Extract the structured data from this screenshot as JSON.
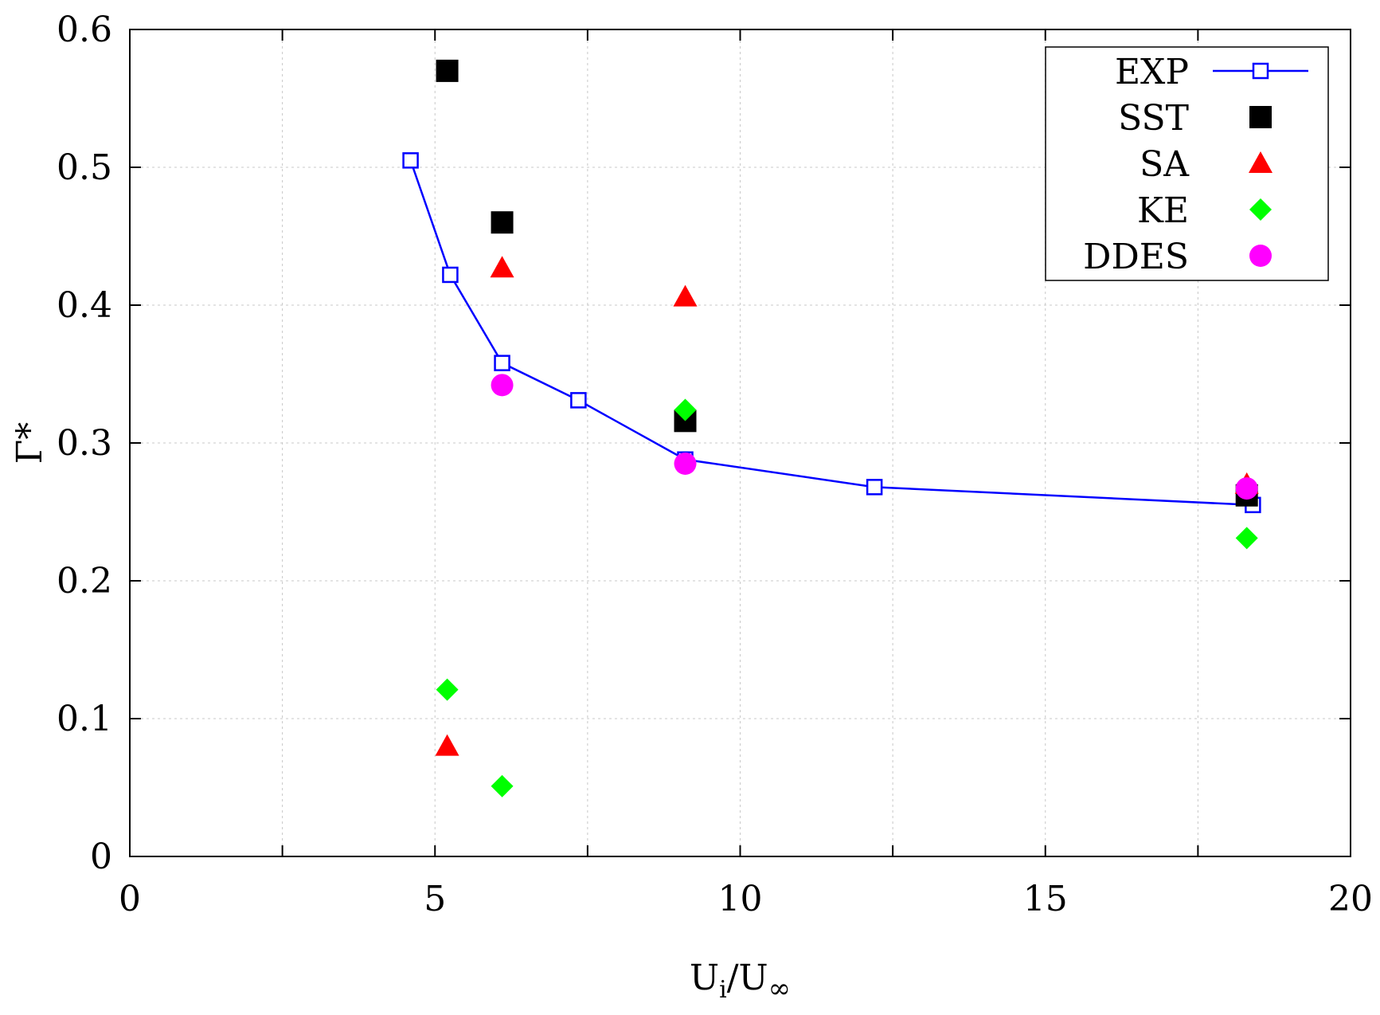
{
  "chart_data": {
    "type": "scatter",
    "title": "",
    "xlabel": "Ui/U∞",
    "xlabel_parts": {
      "base": "U",
      "sub": "i",
      "mid": "/U",
      "sub2": "∞"
    },
    "ylabel": "Γ*",
    "xlim": [
      0,
      20
    ],
    "ylim": [
      0,
      0.6
    ],
    "xticks": [
      0,
      5,
      10,
      15,
      20
    ],
    "yticks": [
      0,
      0.1,
      0.2,
      0.3,
      0.4,
      0.5,
      0.6
    ],
    "xtick_labels": [
      "0",
      "5",
      "10",
      "15",
      "20"
    ],
    "ytick_labels": [
      "0",
      "0.1",
      "0.2",
      "0.3",
      "0.4",
      "0.5",
      "0.6"
    ],
    "grid": true,
    "legend_position": "top-right",
    "series": [
      {
        "name": "EXP",
        "marker": "open-square",
        "line": true,
        "color": "#0000ff",
        "x": [
          4.6,
          5.25,
          6.1,
          7.35,
          9.1,
          12.2,
          18.4
        ],
        "y": [
          0.505,
          0.422,
          0.358,
          0.331,
          0.288,
          0.268,
          0.255
        ]
      },
      {
        "name": "SST",
        "marker": "filled-square",
        "line": false,
        "color": "#000000",
        "x": [
          5.2,
          6.1,
          9.1,
          18.3
        ],
        "y": [
          0.57,
          0.46,
          0.316,
          0.262
        ]
      },
      {
        "name": "SA",
        "marker": "triangle",
        "line": false,
        "color": "#ff0000",
        "x": [
          5.2,
          6.1,
          9.1,
          18.3
        ],
        "y": [
          0.08,
          0.427,
          0.406,
          0.27
        ]
      },
      {
        "name": "KE",
        "marker": "diamond",
        "line": false,
        "color": "#00ff00",
        "x": [
          5.2,
          6.1,
          9.1,
          18.3
        ],
        "y": [
          0.121,
          0.051,
          0.324,
          0.231
        ]
      },
      {
        "name": "DDES",
        "marker": "circle",
        "line": false,
        "color": "#ff00ff",
        "x": [
          6.1,
          9.1,
          18.3
        ],
        "y": [
          0.342,
          0.285,
          0.267
        ]
      }
    ]
  }
}
